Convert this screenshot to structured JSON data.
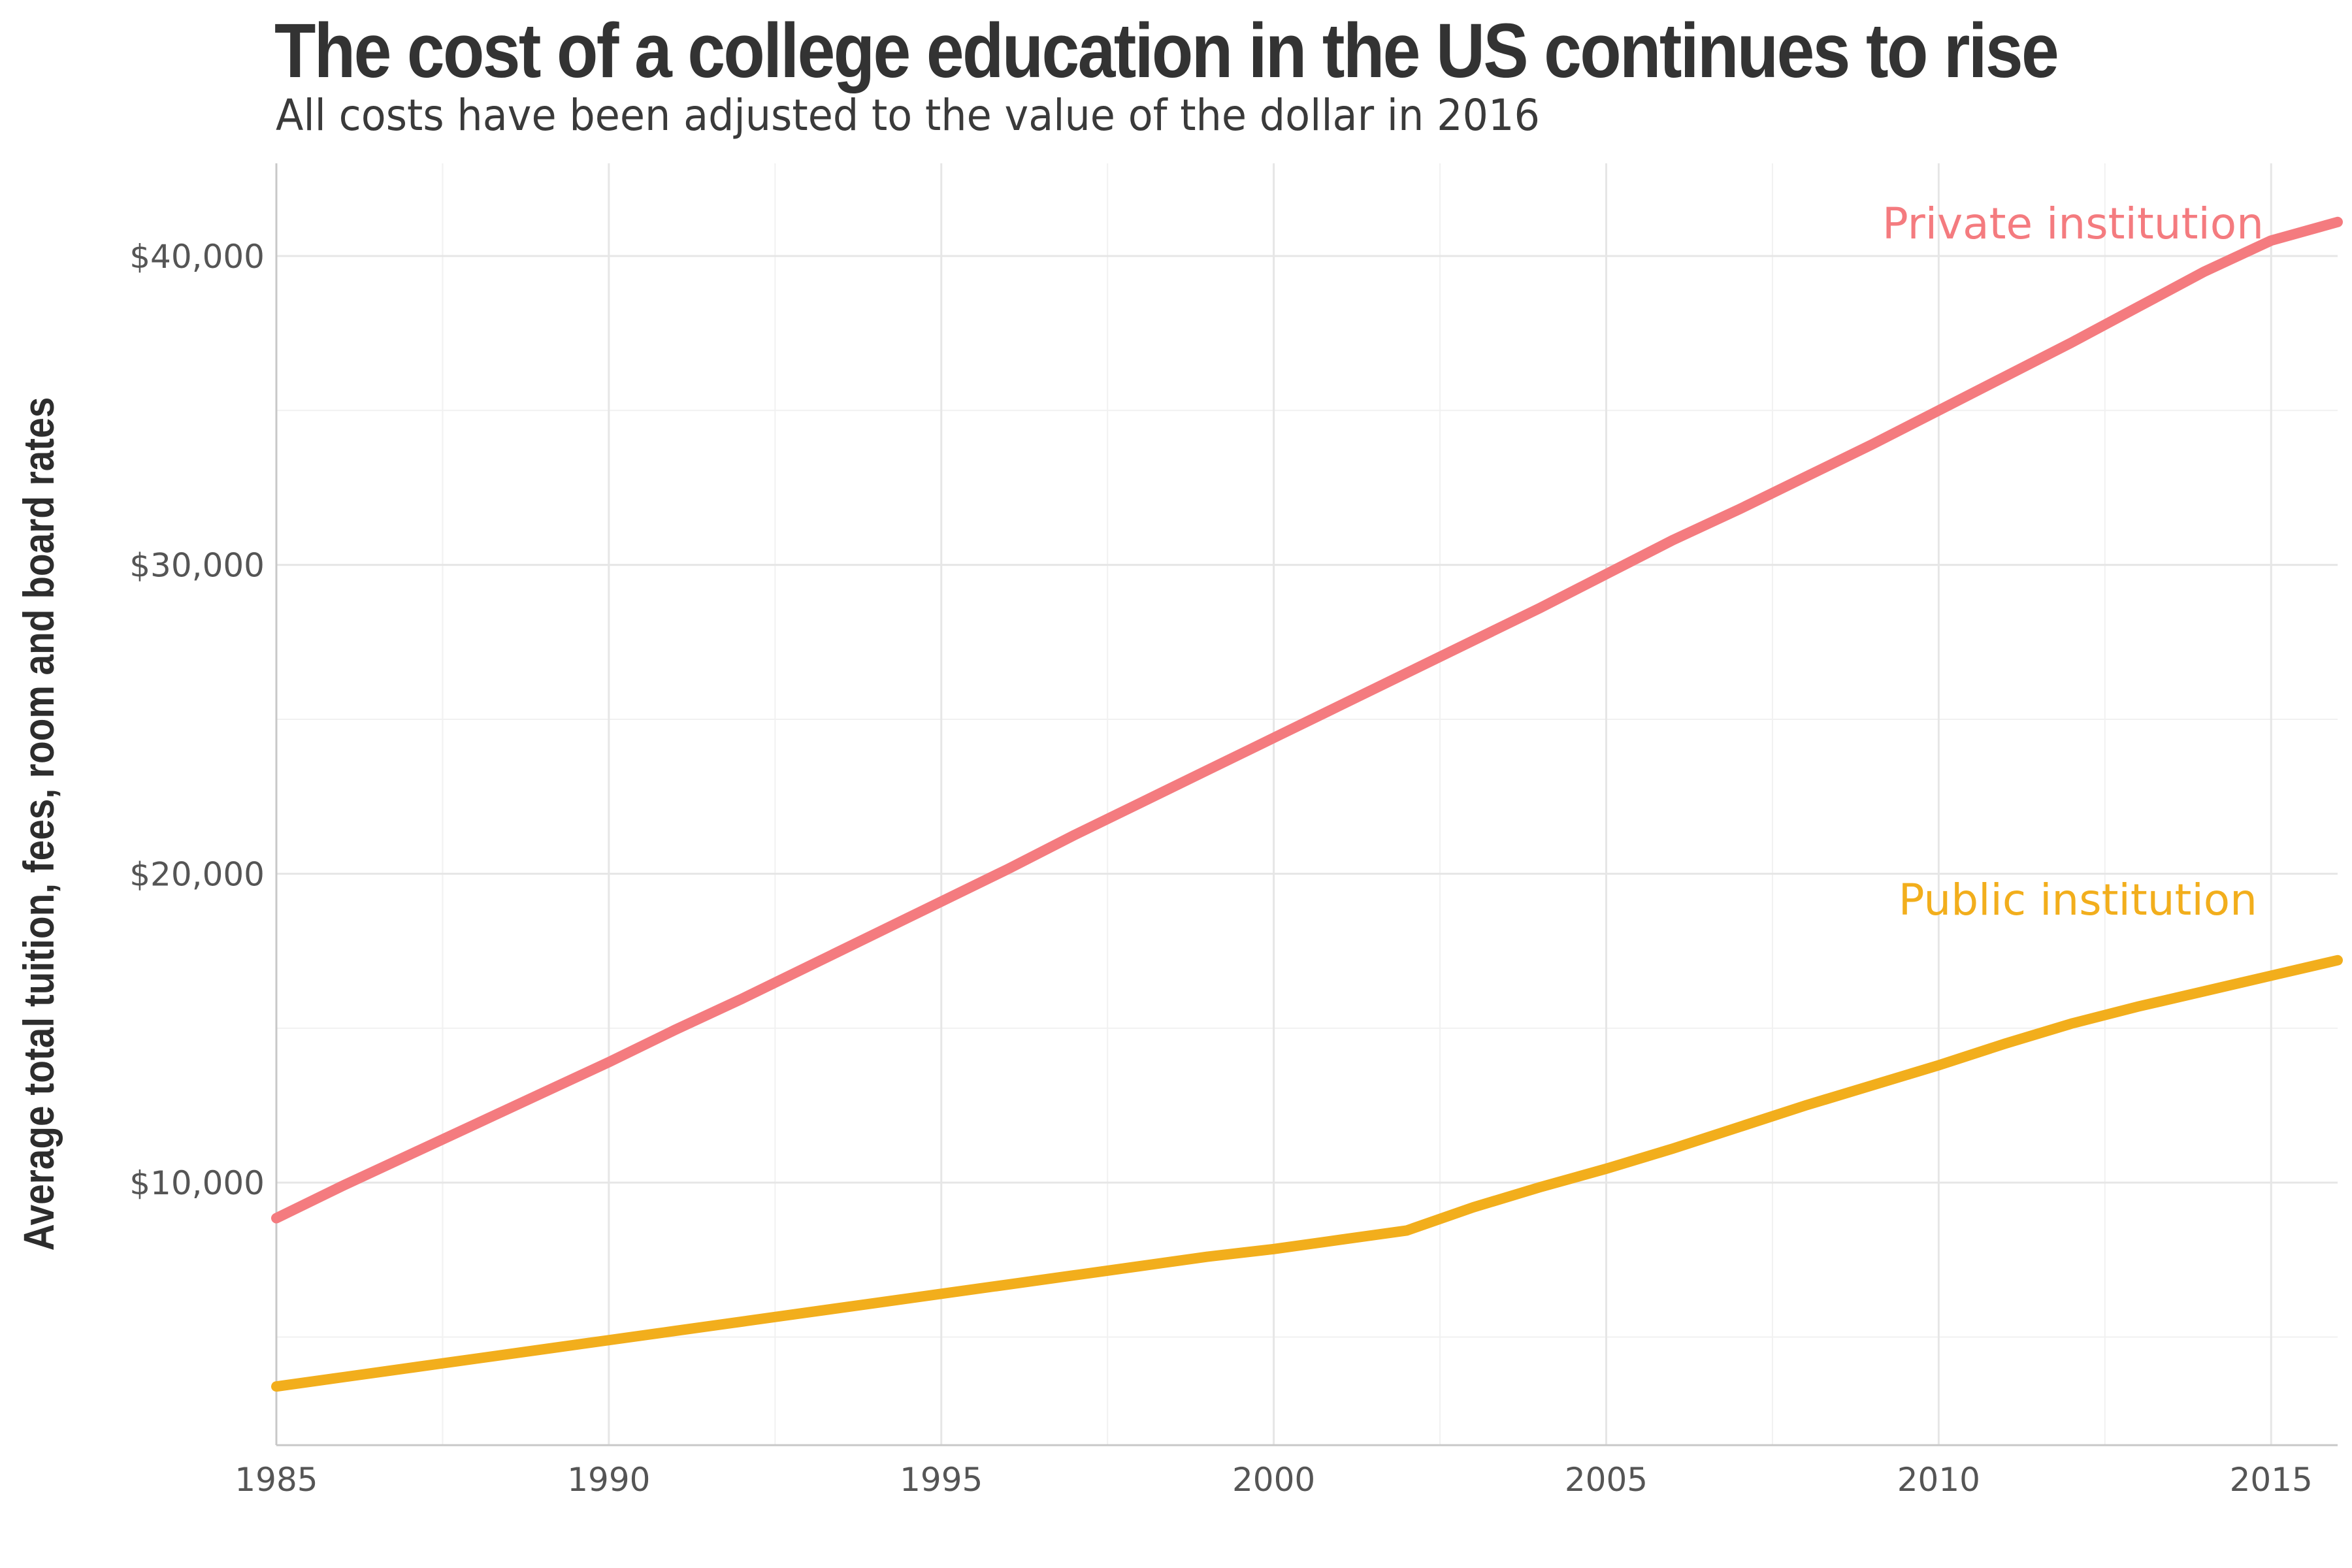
{
  "header": {
    "title": "The cost of a college education in the US continues to rise",
    "subtitle": "All costs have been adjusted to the value of the dollar in 2016"
  },
  "chart_data": {
    "type": "line",
    "title": "The cost of a college education in the US continues to rise",
    "subtitle": "All costs have been adjusted to the value of the dollar in 2016",
    "xlabel": "",
    "ylabel": "Average total tuition, fees, room and board rates",
    "xlim": [
      1985,
      2016
    ],
    "ylim": [
      1500,
      43000
    ],
    "x_ticks": [
      1985,
      1990,
      1995,
      2000,
      2005,
      2010,
      2015
    ],
    "x_tick_labels": [
      "1985",
      "1990",
      "1995",
      "2000",
      "2005",
      "2010",
      "2015"
    ],
    "y_ticks": [
      10000,
      20000,
      30000,
      40000
    ],
    "y_tick_labels": [
      "$10,000",
      "$20,000",
      "$30,000",
      "$40,000"
    ],
    "grid": true,
    "legend": "direct labels",
    "series": [
      {
        "name": "Private institution",
        "color": "#f47b7f",
        "x": [
          1985,
          1986,
          1987,
          1988,
          1989,
          1990,
          1991,
          1992,
          1993,
          1994,
          1995,
          1996,
          1997,
          1998,
          1999,
          2000,
          2001,
          2002,
          2003,
          2004,
          2005,
          2006,
          2007,
          2008,
          2009,
          2010,
          2011,
          2012,
          2013,
          2014,
          2015,
          2016
        ],
        "values": [
          8850,
          9900,
          10900,
          11900,
          12900,
          13900,
          14950,
          15950,
          17000,
          18050,
          19100,
          20150,
          21250,
          22300,
          23350,
          24400,
          25450,
          26500,
          27550,
          28600,
          29700,
          30800,
          31800,
          32850,
          33900,
          35000,
          36100,
          37200,
          38350,
          39500,
          40500,
          41100
        ]
      },
      {
        "name": "Public institution",
        "color": "#f2ae1c",
        "x": [
          1985,
          1986,
          1987,
          1988,
          1989,
          1990,
          1991,
          1992,
          1993,
          1994,
          1995,
          1996,
          1997,
          1998,
          1999,
          2000,
          2001,
          2002,
          2003,
          2004,
          2005,
          2006,
          2007,
          2008,
          2009,
          2010,
          2011,
          2012,
          2013,
          2014,
          2015,
          2016
        ],
        "values": [
          3400,
          3700,
          4000,
          4300,
          4600,
          4900,
          5200,
          5500,
          5800,
          6100,
          6400,
          6700,
          7000,
          7300,
          7600,
          7850,
          8150,
          8450,
          9200,
          9850,
          10450,
          11100,
          11800,
          12500,
          13150,
          13800,
          14500,
          15150,
          15700,
          16200,
          16700,
          17200
        ]
      }
    ]
  }
}
